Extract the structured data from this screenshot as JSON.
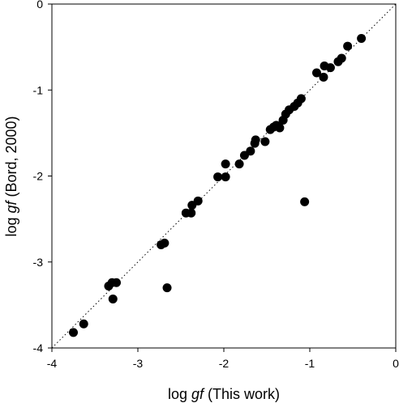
{
  "chart_data": {
    "type": "scatter",
    "xlabel_prefix": "log ",
    "xlabel_italic": "gf",
    "xlabel_suffix": " (This work)",
    "ylabel_prefix": "log ",
    "ylabel_italic": "gf",
    "ylabel_suffix": " (Bord, 2000)",
    "xlim": [
      -4,
      0
    ],
    "ylim": [
      -4,
      0
    ],
    "xticks": [
      -4,
      -3,
      -2,
      -1,
      0
    ],
    "yticks": [
      -4,
      -3,
      -2,
      -1,
      0
    ],
    "xtick_labels": [
      "-4",
      "-3",
      "-2",
      "-1",
      "0"
    ],
    "ytick_labels": [
      "-4",
      "-3",
      "-2",
      "-1",
      "0"
    ],
    "reference_line": "y = x (dotted)",
    "grid": false,
    "marker_color": "#000000",
    "series": [
      {
        "points": [
          [
            -3.75,
            -3.82
          ],
          [
            -3.63,
            -3.72
          ],
          [
            -3.34,
            -3.28
          ],
          [
            -3.3,
            -3.24
          ],
          [
            -3.25,
            -3.24
          ],
          [
            -3.29,
            -3.43
          ],
          [
            -2.73,
            -2.8
          ],
          [
            -2.69,
            -2.78
          ],
          [
            -2.66,
            -3.3
          ],
          [
            -2.44,
            -2.43
          ],
          [
            -2.38,
            -2.43
          ],
          [
            -2.37,
            -2.34
          ],
          [
            -2.3,
            -2.29
          ],
          [
            -2.07,
            -2.01
          ],
          [
            -1.98,
            -2.01
          ],
          [
            -1.98,
            -1.86
          ],
          [
            -1.82,
            -1.86
          ],
          [
            -1.76,
            -1.76
          ],
          [
            -1.69,
            -1.71
          ],
          [
            -1.64,
            -1.62
          ],
          [
            -1.63,
            -1.58
          ],
          [
            -1.52,
            -1.6
          ],
          [
            -1.46,
            -1.46
          ],
          [
            -1.42,
            -1.43
          ],
          [
            -1.39,
            -1.41
          ],
          [
            -1.35,
            -1.44
          ],
          [
            -1.31,
            -1.35
          ],
          [
            -1.28,
            -1.28
          ],
          [
            -1.24,
            -1.23
          ],
          [
            -1.18,
            -1.19
          ],
          [
            -1.14,
            -1.15
          ],
          [
            -1.1,
            -1.1
          ],
          [
            -1.06,
            -2.3
          ],
          [
            -0.92,
            -0.8
          ],
          [
            -0.84,
            -0.85
          ],
          [
            -0.83,
            -0.72
          ],
          [
            -0.76,
            -0.74
          ],
          [
            -0.67,
            -0.67
          ],
          [
            -0.63,
            -0.63
          ],
          [
            -0.56,
            -0.49
          ],
          [
            -0.4,
            -0.4
          ]
        ]
      }
    ]
  }
}
